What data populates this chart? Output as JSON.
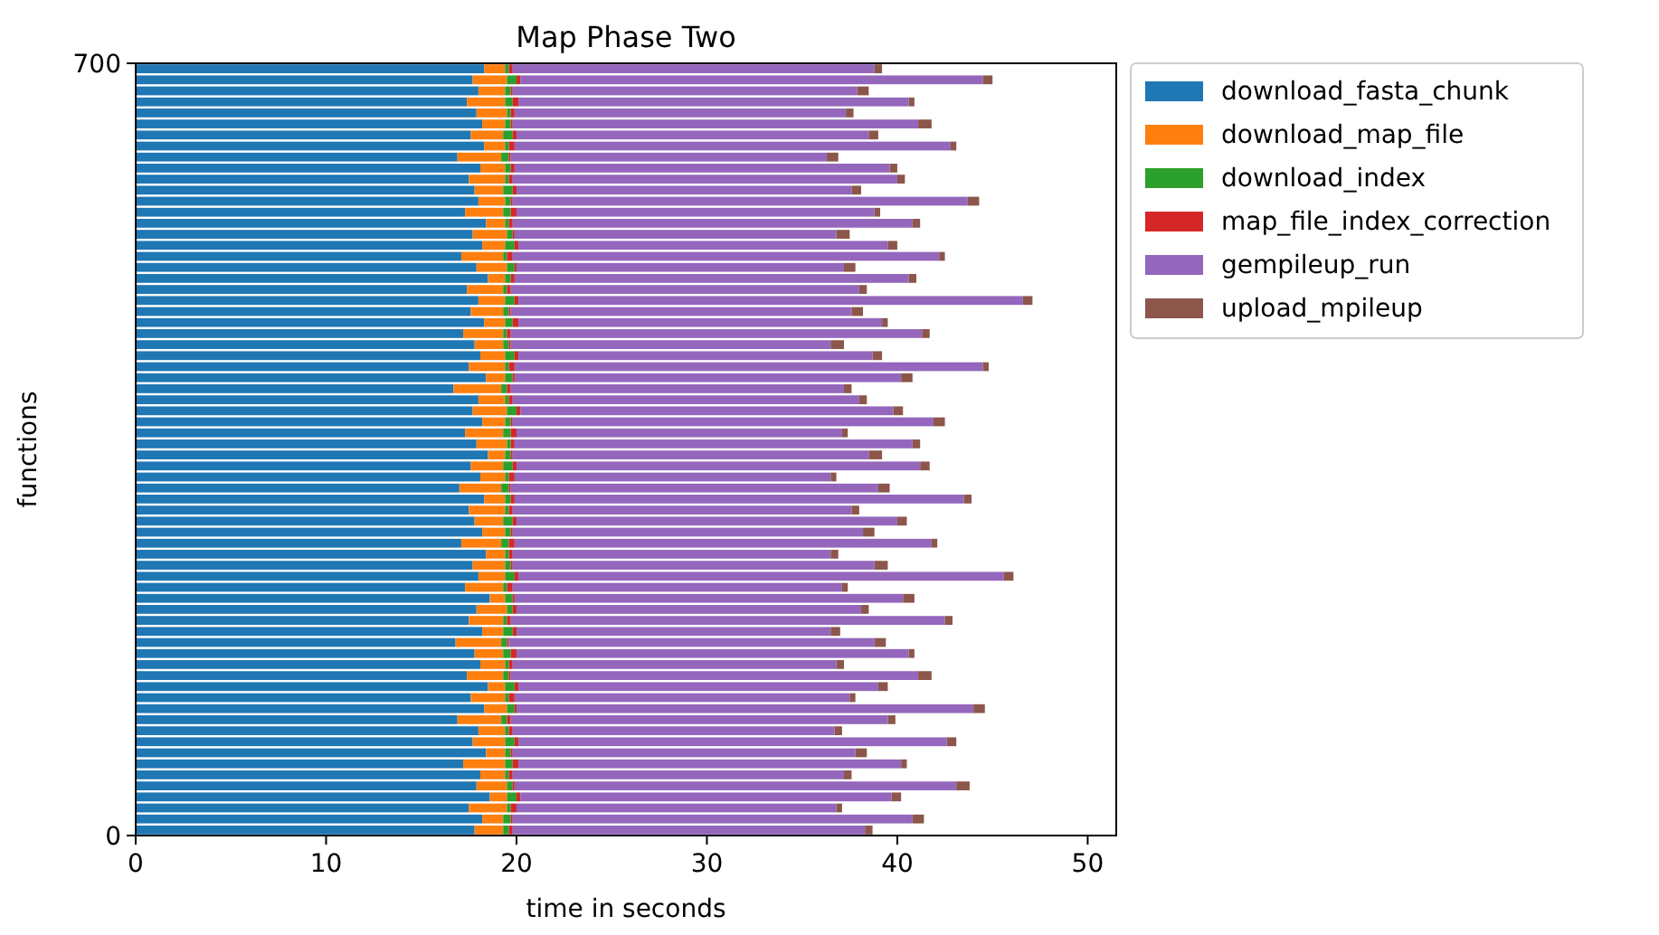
{
  "chart_data": {
    "type": "bar",
    "title": "Map Phase Two",
    "xlabel": "time in seconds",
    "ylabel": "functions",
    "orientation": "horizontal",
    "stacked": true,
    "legend": "top right",
    "x": [
      5,
      15,
      25,
      35,
      45,
      55,
      65,
      75,
      85,
      95,
      105,
      115,
      125,
      135,
      145,
      155,
      165,
      175,
      185,
      195,
      205,
      215,
      225,
      235,
      245,
      255,
      265,
      275,
      285,
      295,
      305,
      315,
      325,
      335,
      345,
      355,
      365,
      375,
      385,
      395,
      405,
      415,
      425,
      435,
      445,
      455,
      465,
      475,
      485,
      495,
      505,
      515,
      525,
      535,
      545,
      555,
      565,
      575,
      585,
      595,
      605,
      615,
      625,
      635,
      645,
      655,
      665,
      675,
      685,
      695
    ],
    "xlim": [
      0,
      51.5
    ],
    "xticks": [
      0,
      10,
      20,
      30,
      40,
      50
    ],
    "ylim": [
      0,
      700
    ],
    "yticks": [
      0,
      700
    ],
    "series": [
      {
        "name": "download_fasta_chunk",
        "color": "#1f77b4",
        "values": [
          17.8,
          18.2,
          17.5,
          18.6,
          17.9,
          18.1,
          17.2,
          18.4,
          17.7,
          18.0,
          16.9,
          18.3,
          17.6,
          18.5,
          17.4,
          18.1,
          17.8,
          16.8,
          18.2,
          17.5,
          17.9,
          18.6,
          17.3,
          18.0,
          17.7,
          18.4,
          17.1,
          18.2,
          17.8,
          17.5,
          18.3,
          17.0,
          18.1,
          17.6,
          18.5,
          17.9,
          17.3,
          18.2,
          17.7,
          18.0,
          16.7,
          18.4,
          17.5,
          18.1,
          17.8,
          17.2,
          18.3,
          17.6,
          18.0,
          17.4,
          18.5,
          17.9,
          17.1,
          18.2,
          17.7,
          18.4,
          17.3,
          18.0,
          17.8,
          17.5,
          18.1,
          16.9,
          18.3,
          17.6,
          18.2,
          17.9,
          17.4,
          18.0,
          17.7,
          18.3
        ]
      },
      {
        "name": "download_map_file",
        "color": "#ff7f0e",
        "values": [
          1.5,
          1.1,
          2.0,
          0.9,
          1.6,
          1.3,
          2.2,
          1.0,
          1.7,
          1.4,
          2.3,
          1.2,
          1.8,
          0.9,
          1.9,
          1.3,
          1.5,
          2.4,
          1.1,
          1.8,
          1.6,
          0.8,
          2.0,
          1.4,
          1.7,
          1.0,
          2.1,
          1.2,
          1.5,
          1.9,
          1.1,
          2.2,
          1.3,
          1.7,
          0.9,
          1.6,
          2.0,
          1.2,
          1.8,
          1.4,
          2.5,
          1.0,
          1.9,
          1.3,
          1.5,
          2.1,
          1.1,
          1.7,
          1.4,
          1.9,
          0.9,
          1.6,
          2.2,
          1.2,
          1.8,
          1.0,
          2.0,
          1.4,
          1.5,
          1.9,
          1.3,
          2.3,
          1.1,
          1.7,
          1.2,
          1.6,
          2.0,
          1.4,
          1.8,
          1.1
        ]
      },
      {
        "name": "download_index",
        "color": "#2ca02c",
        "values": [
          0.3,
          0.4,
          0.2,
          0.5,
          0.3,
          0.2,
          0.4,
          0.3,
          0.5,
          0.2,
          0.3,
          0.4,
          0.2,
          0.5,
          0.3,
          0.2,
          0.4,
          0.3,
          0.5,
          0.2,
          0.3,
          0.4,
          0.2,
          0.5,
          0.3,
          0.2,
          0.4,
          0.3,
          0.5,
          0.2,
          0.3,
          0.4,
          0.2,
          0.5,
          0.3,
          0.2,
          0.4,
          0.3,
          0.5,
          0.2,
          0.3,
          0.4,
          0.2,
          0.5,
          0.3,
          0.2,
          0.4,
          0.3,
          0.5,
          0.2,
          0.3,
          0.4,
          0.2,
          0.5,
          0.3,
          0.2,
          0.4,
          0.3,
          0.5,
          0.2,
          0.3,
          0.4,
          0.2,
          0.5,
          0.3,
          0.2,
          0.4,
          0.3,
          0.5,
          0.2
        ]
      },
      {
        "name": "map_file_index_correction",
        "color": "#d62728",
        "values": [
          0.2,
          0.1,
          0.3,
          0.2,
          0.1,
          0.2,
          0.3,
          0.1,
          0.2,
          0.2,
          0.2,
          0.1,
          0.3,
          0.2,
          0.1,
          0.2,
          0.3,
          0.1,
          0.2,
          0.2,
          0.2,
          0.1,
          0.3,
          0.2,
          0.1,
          0.2,
          0.3,
          0.1,
          0.2,
          0.2,
          0.2,
          0.1,
          0.3,
          0.2,
          0.1,
          0.2,
          0.3,
          0.1,
          0.2,
          0.2,
          0.2,
          0.1,
          0.3,
          0.2,
          0.1,
          0.2,
          0.3,
          0.1,
          0.2,
          0.2,
          0.2,
          0.1,
          0.3,
          0.2,
          0.1,
          0.2,
          0.3,
          0.1,
          0.2,
          0.2,
          0.2,
          0.1,
          0.3,
          0.2,
          0.1,
          0.2,
          0.3,
          0.1,
          0.2,
          0.2
        ]
      },
      {
        "name": "gempileup_run",
        "color": "#9467bd",
        "values": [
          18.5,
          21.0,
          16.8,
          19.5,
          23.2,
          17.4,
          20.1,
          18.0,
          22.5,
          16.9,
          19.8,
          24.0,
          17.6,
          18.9,
          21.4,
          17.0,
          20.6,
          19.2,
          16.5,
          22.8,
          18.1,
          20.4,
          17.3,
          25.5,
          19.0,
          16.7,
          21.9,
          18.4,
          20.0,
          17.8,
          23.6,
          19.3,
          16.6,
          21.2,
          18.7,
          20.9,
          17.1,
          22.1,
          19.6,
          18.2,
          17.5,
          20.3,
          24.6,
          18.6,
          16.8,
          21.6,
          19.1,
          17.9,
          26.5,
          18.3,
          20.7,
          17.2,
          22.4,
          19.4,
          16.9,
          21.0,
          18.8,
          23.9,
          17.6,
          20.2,
          19.7,
          16.6,
          22.9,
          18.5,
          21.3,
          17.4,
          20.5,
          18.1,
          24.3,
          19.0
        ]
      },
      {
        "name": "upload_mpileup",
        "color": "#8c564b",
        "values": [
          0.4,
          0.6,
          0.3,
          0.5,
          0.7,
          0.4,
          0.3,
          0.6,
          0.5,
          0.4,
          0.4,
          0.6,
          0.3,
          0.5,
          0.7,
          0.4,
          0.3,
          0.6,
          0.5,
          0.4,
          0.4,
          0.6,
          0.3,
          0.5,
          0.7,
          0.4,
          0.3,
          0.6,
          0.5,
          0.4,
          0.4,
          0.6,
          0.3,
          0.5,
          0.7,
          0.4,
          0.3,
          0.6,
          0.5,
          0.4,
          0.4,
          0.6,
          0.3,
          0.5,
          0.7,
          0.4,
          0.3,
          0.6,
          0.5,
          0.4,
          0.4,
          0.6,
          0.3,
          0.5,
          0.7,
          0.4,
          0.3,
          0.6,
          0.5,
          0.4,
          0.4,
          0.6,
          0.3,
          0.5,
          0.7,
          0.4,
          0.3,
          0.6,
          0.5,
          0.4
        ]
      }
    ]
  }
}
